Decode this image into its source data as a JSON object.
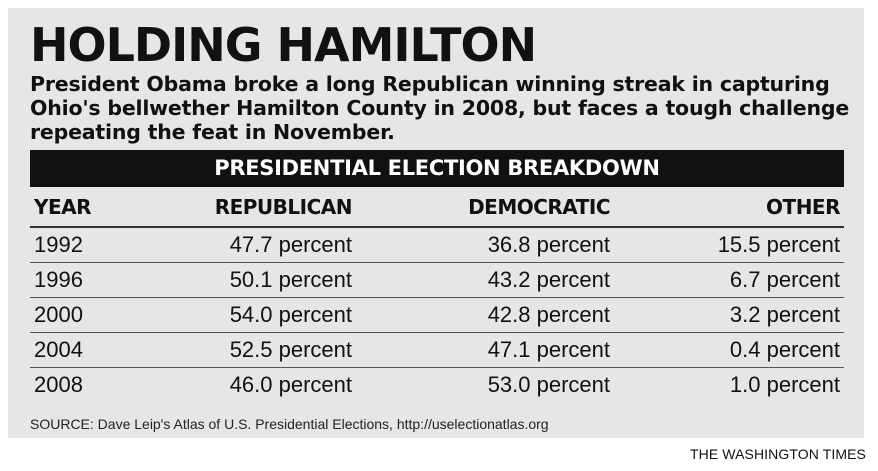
{
  "header": {
    "title": "HOLDING HAMILTON",
    "subtitle": "President Obama broke a long Republican winning streak in capturing Ohio's bellwether Hamilton County in 2008, but faces a tough challenge repeating the feat in November."
  },
  "chart_data": {
    "type": "table",
    "title": "PRESIDENTIAL ELECTION BREAKDOWN",
    "columns": [
      "YEAR",
      "REPUBLICAN",
      "DEMOCRATIC",
      "OTHER"
    ],
    "rows": [
      [
        "1992",
        "47.7 percent",
        "36.8 percent",
        "15.5 percent"
      ],
      [
        "1996",
        "50.1 percent",
        "43.2 percent",
        "6.7 percent"
      ],
      [
        "2000",
        "54.0 percent",
        "42.8 percent",
        "3.2 percent"
      ],
      [
        "2004",
        "52.5 percent",
        "47.1 percent",
        "0.4 percent"
      ],
      [
        "2008",
        "46.0 percent",
        "53.0 percent",
        "1.0 percent"
      ]
    ]
  },
  "footer": {
    "source": "SOURCE: Dave Leip's Atlas of U.S. Presidential Elections, http://uselectionatlas.org",
    "credit": "THE WASHINGTON TIMES"
  }
}
